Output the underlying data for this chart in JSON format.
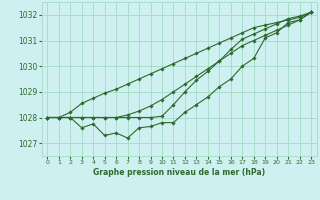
{
  "background_color": "#cef0f0",
  "grid_color": "#aaddcc",
  "line_color": "#2d6a2d",
  "marker_color": "#2d6a2d",
  "xlabel": "Graphe pression niveau de la mer (hPa)",
  "ylim": [
    1026.5,
    1032.5
  ],
  "xlim": [
    -0.5,
    23.5
  ],
  "yticks": [
    1027,
    1028,
    1029,
    1030,
    1031,
    1032
  ],
  "xticks": [
    0,
    1,
    2,
    3,
    4,
    5,
    6,
    7,
    8,
    9,
    10,
    11,
    12,
    13,
    14,
    15,
    16,
    17,
    18,
    19,
    20,
    21,
    22,
    23
  ],
  "series": [
    [
      1028.0,
      1028.0,
      1028.0,
      1027.6,
      1027.75,
      1027.3,
      1027.4,
      1027.2,
      1027.6,
      1027.65,
      1027.8,
      1027.8,
      1028.2,
      1028.5,
      1028.8,
      1029.2,
      1029.5,
      1030.0,
      1030.3,
      1031.1,
      1031.3,
      1031.7,
      1031.8,
      1032.1
    ],
    [
      1028.0,
      1028.0,
      1028.0,
      1028.0,
      1028.0,
      1028.0,
      1028.0,
      1028.0,
      1028.0,
      1028.0,
      1028.05,
      1028.5,
      1029.0,
      1029.45,
      1029.8,
      1030.2,
      1030.65,
      1031.05,
      1031.25,
      1031.45,
      1031.65,
      1031.85,
      1031.95,
      1032.1
    ],
    [
      1028.0,
      1028.0,
      1028.2,
      1028.55,
      1028.75,
      1028.95,
      1029.1,
      1029.3,
      1029.5,
      1029.7,
      1029.9,
      1030.1,
      1030.3,
      1030.5,
      1030.7,
      1030.9,
      1031.1,
      1031.3,
      1031.5,
      1031.6,
      1031.7,
      1031.8,
      1031.9,
      1032.1
    ],
    [
      1028.0,
      1028.0,
      1028.0,
      1028.0,
      1028.0,
      1028.0,
      1028.0,
      1028.1,
      1028.25,
      1028.45,
      1028.7,
      1029.0,
      1029.3,
      1029.6,
      1029.9,
      1030.2,
      1030.5,
      1030.8,
      1031.0,
      1031.2,
      1031.4,
      1031.6,
      1031.8,
      1032.1
    ]
  ]
}
